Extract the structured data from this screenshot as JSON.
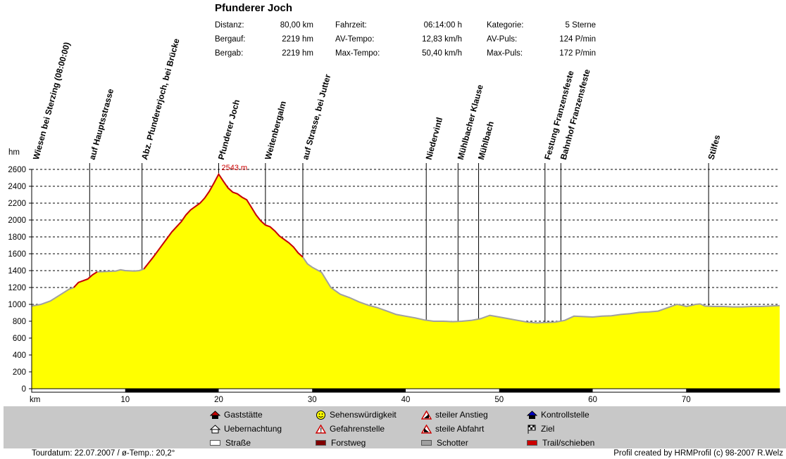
{
  "header": {
    "title": "Pfunderer Joch",
    "stats": [
      {
        "label": "Distanz:",
        "value": "80,00 km"
      },
      {
        "label": "Bergauf:",
        "value": "2219 hm"
      },
      {
        "label": "Bergab:",
        "value": "2219 hm"
      },
      {
        "label": "Fahrzeit:",
        "value": "06:14:00 h"
      },
      {
        "label": "AV-Tempo:",
        "value": "12,83 km/h"
      },
      {
        "label": "Max-Tempo:",
        "value": "50,40 km/h"
      },
      {
        "label": "Kategorie:",
        "value": "5 Sterne"
      },
      {
        "label": "AV-Puls:",
        "value": "124 P/min"
      },
      {
        "label": "Max-Puls:",
        "value": "172 P/min"
      }
    ]
  },
  "chart_data": {
    "type": "area",
    "ylabel": "hm",
    "xlabel": "km",
    "xlim": [
      0,
      80
    ],
    "ylim": [
      0,
      2600
    ],
    "yticks": [
      0,
      200,
      400,
      600,
      800,
      1000,
      1200,
      1400,
      1600,
      1800,
      2000,
      2200,
      2400,
      2600
    ],
    "xticks": [
      10,
      20,
      30,
      40,
      50,
      60,
      70
    ],
    "grid": true,
    "fill_color": "#ffff00",
    "line_color": "#a0a0a0",
    "trail_color": "#cc0000",
    "peak_label": "2543 m",
    "peak": {
      "x": 20.0,
      "y": 2543
    },
    "profile": [
      [
        0,
        980
      ],
      [
        1,
        1000
      ],
      [
        2,
        1040
      ],
      [
        3,
        1110
      ],
      [
        4,
        1180
      ],
      [
        4.5,
        1200
      ],
      [
        5,
        1260
      ],
      [
        6,
        1300
      ],
      [
        6.5,
        1350
      ],
      [
        7,
        1385
      ],
      [
        8,
        1390
      ],
      [
        9,
        1395
      ],
      [
        9.5,
        1410
      ],
      [
        10,
        1400
      ],
      [
        11,
        1395
      ],
      [
        11.5,
        1400
      ],
      [
        12,
        1420
      ],
      [
        13,
        1560
      ],
      [
        14,
        1710
      ],
      [
        15,
        1860
      ],
      [
        16,
        1980
      ],
      [
        16.5,
        2060
      ],
      [
        17,
        2120
      ],
      [
        17.5,
        2160
      ],
      [
        18,
        2200
      ],
      [
        18.5,
        2260
      ],
      [
        19,
        2340
      ],
      [
        19.5,
        2440
      ],
      [
        20,
        2543
      ],
      [
        20.5,
        2460
      ],
      [
        21,
        2380
      ],
      [
        21.5,
        2330
      ],
      [
        22,
        2310
      ],
      [
        22.5,
        2270
      ],
      [
        23,
        2240
      ],
      [
        23.5,
        2150
      ],
      [
        24,
        2060
      ],
      [
        24.5,
        1990
      ],
      [
        25,
        1940
      ],
      [
        25.5,
        1920
      ],
      [
        26,
        1870
      ],
      [
        26.5,
        1810
      ],
      [
        27,
        1770
      ],
      [
        27.5,
        1730
      ],
      [
        28,
        1680
      ],
      [
        28.5,
        1610
      ],
      [
        29,
        1560
      ],
      [
        29.5,
        1480
      ],
      [
        30,
        1440
      ],
      [
        31,
        1380
      ],
      [
        32,
        1200
      ],
      [
        33,
        1120
      ],
      [
        34,
        1080
      ],
      [
        35,
        1030
      ],
      [
        36,
        990
      ],
      [
        37,
        960
      ],
      [
        38,
        920
      ],
      [
        39,
        880
      ],
      [
        40,
        860
      ],
      [
        41,
        840
      ],
      [
        42,
        815
      ],
      [
        43,
        800
      ],
      [
        44,
        800
      ],
      [
        45,
        795
      ],
      [
        46,
        800
      ],
      [
        47,
        810
      ],
      [
        48,
        830
      ],
      [
        49,
        870
      ],
      [
        50,
        850
      ],
      [
        51,
        830
      ],
      [
        52,
        810
      ],
      [
        53,
        790
      ],
      [
        54,
        780
      ],
      [
        55,
        785
      ],
      [
        56,
        790
      ],
      [
        57,
        810
      ],
      [
        58,
        860
      ],
      [
        59,
        855
      ],
      [
        60,
        850
      ],
      [
        61,
        860
      ],
      [
        62,
        865
      ],
      [
        63,
        880
      ],
      [
        64,
        890
      ],
      [
        65,
        905
      ],
      [
        66,
        910
      ],
      [
        67,
        920
      ],
      [
        68,
        960
      ],
      [
        69,
        1000
      ],
      [
        69.5,
        990
      ],
      [
        70,
        975
      ],
      [
        70.5,
        985
      ],
      [
        71,
        1000
      ],
      [
        71.5,
        1005
      ],
      [
        72,
        980
      ],
      [
        73,
        975
      ],
      [
        74,
        975
      ],
      [
        75,
        970
      ],
      [
        76,
        970
      ],
      [
        77,
        975
      ],
      [
        78,
        975
      ],
      [
        79,
        980
      ],
      [
        80,
        985
      ]
    ],
    "trail_segments": [
      [
        4.5,
        7.5
      ],
      [
        12,
        29
      ]
    ],
    "waypoints": [
      {
        "name": "Wiesen bei Sterzing (08:00:00)",
        "km": 0.2
      },
      {
        "name": "auf Hauptsstrasse",
        "km": 6.2
      },
      {
        "name": "Abz. Pfundererjoch, bei Brücke",
        "km": 11.8
      },
      {
        "name": "Pfunderer Joch",
        "km": 20.0
      },
      {
        "name": "Weitenbergalm",
        "km": 25.0
      },
      {
        "name": "auf Strasse, bei Jutter",
        "km": 29.0
      },
      {
        "name": "Niedervintl",
        "km": 42.2
      },
      {
        "name": "Mühlbacher Klause",
        "km": 45.6
      },
      {
        "name": "Mühlbach",
        "km": 47.8
      },
      {
        "name": "Festung Franzensfeste",
        "km": 54.9
      },
      {
        "name": "Bahnhof Franzensfeste",
        "km": 56.6
      },
      {
        "name": "Stilfes",
        "km": 72.4
      }
    ]
  },
  "legend": [
    {
      "label": "Gaststätte",
      "icon": "house-red-roof-icon"
    },
    {
      "label": "Uebernachtung",
      "icon": "hut-icon"
    },
    {
      "label": "Straße",
      "icon": "road-swatch-icon",
      "color": "#ffffff"
    },
    {
      "label": "Sehenswürdigkeit",
      "icon": "smiley-icon"
    },
    {
      "label": "Gefahrenstelle",
      "icon": "warning-exclamation-icon"
    },
    {
      "label": "Forstweg",
      "icon": "forestroad-swatch-icon",
      "color": "#800000"
    },
    {
      "label": "steiler Anstieg",
      "icon": "steep-ascent-icon"
    },
    {
      "label": "steile Abfahrt",
      "icon": "steep-descent-icon"
    },
    {
      "label": "Schotter",
      "icon": "gravel-swatch-icon",
      "color": "#a0a0a0"
    },
    {
      "label": "Kontrollstelle",
      "icon": "checkpoint-icon"
    },
    {
      "label": "Ziel",
      "icon": "finish-flag-icon"
    },
    {
      "label": "Trail/schieben",
      "icon": "trail-swatch-icon",
      "color": "#cc0000"
    }
  ],
  "footer": {
    "left": "Tourdatum: 22.07.2007  /  ø-Temp.: 20,2°",
    "right": "Profil created by HRMProfil (c) 98-2007 R.Welz"
  }
}
